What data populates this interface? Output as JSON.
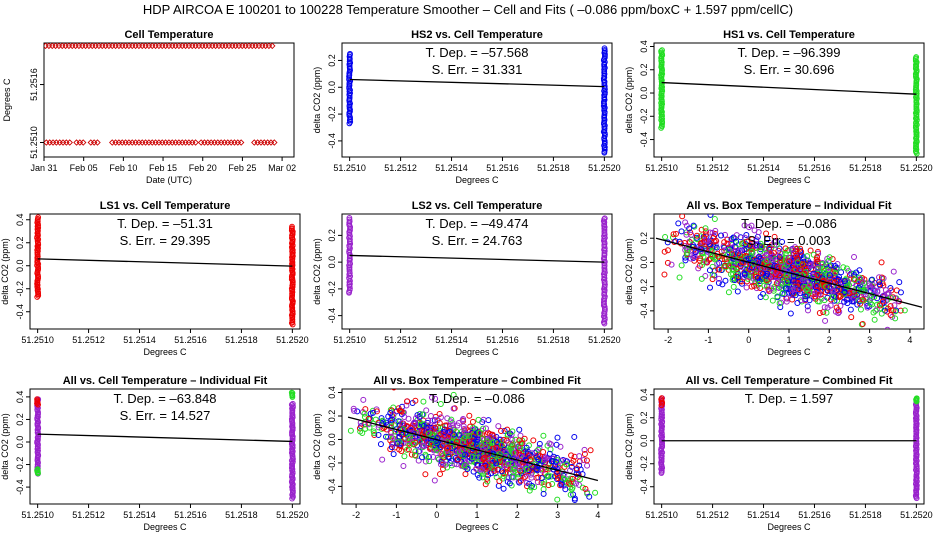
{
  "suptitle": "HDP   AIRCOA E   100201 to 100228   Temperature Smoother – Cell and Fits ( –0.086  ppm/boxC +  1.597  ppm/cellC)",
  "chart_data": [
    {
      "type": "scatter",
      "title": "Cell Temperature",
      "xlabel": "Date (UTC)",
      "ylabel": "Degrees C",
      "x_is_date": true,
      "xlim": [
        31,
        62.5
      ],
      "ylim": [
        51.25085,
        51.25203
      ],
      "xticks": [
        31,
        36,
        41,
        46,
        51,
        56,
        61
      ],
      "xticklabels": [
        "Jan 31",
        "Feb 05",
        "Feb 10",
        "Feb 15",
        "Feb 20",
        "Feb 25",
        "Mar 02"
      ],
      "yticks": [
        51.251,
        51.2516
      ],
      "yticklabels": [
        "51.2510",
        "51.2516"
      ],
      "series": [
        {
          "color": "#cc0000",
          "marker": "diamond",
          "high_level": 51.252,
          "high_range": [
            31.2,
            60.0
          ],
          "low_level": 51.251,
          "low_segments": [
            [
              31.3,
              34.4
            ],
            [
              35.1,
              36.3
            ],
            [
              36.9,
              37.8
            ],
            [
              39.6,
              50.2
            ],
            [
              50.8,
              56.0
            ],
            [
              57.5,
              60.2
            ]
          ]
        }
      ]
    },
    {
      "type": "scatter",
      "title": "HS2 vs. Cell Temperature",
      "annotations": [
        "T. Dep. =  –57.568",
        "S. Err. =  31.331"
      ],
      "xlabel": "Degrees C",
      "ylabel": "delta CO2 (ppm)",
      "xlim": [
        51.25097,
        51.25203
      ],
      "ylim": [
        -0.52,
        0.33
      ],
      "xticks": [
        51.251,
        51.2512,
        51.2514,
        51.2516,
        51.2518,
        51.252
      ],
      "xticklabels": [
        "51.2510",
        "51.2512",
        "51.2514",
        "51.2516",
        "51.2518",
        "51.2520"
      ],
      "yticks": [
        -0.4,
        -0.2,
        0.0,
        0.2
      ],
      "yticklabels": [
        "-0.4",
        "-0.2",
        "0.0",
        "0.2"
      ],
      "series": [
        {
          "color": "#0000ee",
          "x_levels": [
            51.251,
            51.252
          ],
          "y_ranges": [
            [
              -0.27,
              0.25
            ],
            [
              -0.49,
              0.29
            ]
          ]
        }
      ],
      "fit": {
        "x": [
          51.251,
          51.252
        ],
        "y": [
          0.058,
          0.005
        ]
      }
    },
    {
      "type": "scatter",
      "title": "HS1 vs. Cell Temperature",
      "annotations": [
        "T. Dep. =  –96.399",
        "S. Err. =  30.696"
      ],
      "xlabel": "Degrees C",
      "ylabel": "delta CO2 (ppm)",
      "xlim": [
        51.25097,
        51.25203
      ],
      "ylim": [
        -0.55,
        0.43
      ],
      "xticks": [
        51.251,
        51.2512,
        51.2514,
        51.2516,
        51.2518,
        51.252
      ],
      "xticklabels": [
        "51.2510",
        "51.2512",
        "51.2514",
        "51.2516",
        "51.2518",
        "51.2520"
      ],
      "yticks": [
        -0.4,
        -0.2,
        0.0,
        0.2,
        0.4
      ],
      "yticklabels": [
        "-0.4",
        "-0.2",
        "0.0",
        "0.2",
        "0.4"
      ],
      "series": [
        {
          "color": "#22dd22",
          "x_levels": [
            51.251,
            51.252
          ],
          "y_ranges": [
            [
              -0.3,
              0.37
            ],
            [
              -0.52,
              0.31
            ]
          ]
        }
      ],
      "fit": {
        "x": [
          51.251,
          51.252
        ],
        "y": [
          0.09,
          -0.01
        ]
      }
    },
    {
      "type": "scatter",
      "title": "LS1 vs. Cell Temperature",
      "annotations": [
        "T. Dep. =  –51.31",
        "S. Err. =  29.395"
      ],
      "xlabel": "Degrees C",
      "ylabel": "delta CO2 (ppm)",
      "xlim": [
        51.25097,
        51.25203
      ],
      "ylim": [
        -0.55,
        0.45
      ],
      "xticks": [
        51.251,
        51.2512,
        51.2514,
        51.2516,
        51.2518,
        51.252
      ],
      "xticklabels": [
        "51.2510",
        "51.2512",
        "51.2514",
        "51.2516",
        "51.2518",
        "51.2520"
      ],
      "yticks": [
        -0.4,
        -0.2,
        0.0,
        0.2,
        0.4
      ],
      "yticklabels": [
        "-0.4",
        "-0.2",
        "0.0",
        "0.2",
        "0.4"
      ],
      "series": [
        {
          "color": "#ee0000",
          "x_levels": [
            51.251,
            51.252
          ],
          "y_ranges": [
            [
              -0.27,
              0.42
            ],
            [
              -0.51,
              0.34
            ]
          ]
        }
      ],
      "fit": {
        "x": [
          51.251,
          51.252
        ],
        "y": [
          0.06,
          -0.003
        ]
      }
    },
    {
      "type": "scatter",
      "title": "LS2 vs. Cell Temperature",
      "annotations": [
        "T. Dep. =  –49.474",
        "S. Err. =  24.763"
      ],
      "xlabel": "Degrees C",
      "ylabel": "delta CO2 (ppm)",
      "xlim": [
        51.25097,
        51.25203
      ],
      "ylim": [
        -0.5,
        0.36
      ],
      "xticks": [
        51.251,
        51.2512,
        51.2514,
        51.2516,
        51.2518,
        51.252
      ],
      "xticklabels": [
        "51.2510",
        "51.2512",
        "51.2514",
        "51.2516",
        "51.2518",
        "51.2520"
      ],
      "yticks": [
        -0.4,
        -0.2,
        0.0,
        0.2
      ],
      "yticklabels": [
        "-0.4",
        "-0.2",
        "0.0",
        "0.2"
      ],
      "series": [
        {
          "color": "#9922cc",
          "x_levels": [
            51.251,
            51.252
          ],
          "y_ranges": [
            [
              -0.23,
              0.33
            ],
            [
              -0.46,
              0.33
            ]
          ]
        }
      ],
      "fit": {
        "x": [
          51.251,
          51.252
        ],
        "y": [
          0.05,
          0.0
        ]
      }
    },
    {
      "type": "scatter",
      "title": "All vs. Box Temperature – Individual Fit",
      "annotations": [
        "T. Dep. =  –0.086",
        "S. Err. =  0.003"
      ],
      "xlabel": "Degrees C",
      "ylabel": "delta CO2 (ppm)",
      "xlim": [
        -2.35,
        4.35
      ],
      "ylim": [
        -0.55,
        0.4
      ],
      "xticks": [
        -2,
        -1,
        0,
        1,
        2,
        3,
        4
      ],
      "xticklabels": [
        "-2",
        "-1",
        "0",
        "1",
        "2",
        "3",
        "4"
      ],
      "yticks": [
        -0.4,
        -0.2,
        0.0,
        0.2
      ],
      "yticklabels": [
        "-0.4",
        "-0.2",
        "0.0",
        "0.2"
      ],
      "cloud": {
        "x_range": [
          -2.2,
          4.1
        ],
        "slope": -0.086,
        "intercept": 0.0,
        "spread": 0.13,
        "colors": [
          "#ee0000",
          "#0000ee",
          "#22dd22",
          "#9922cc"
        ]
      },
      "fit": {
        "x": [
          -2.3,
          4.3
        ],
        "y": [
          0.2,
          -0.37
        ]
      }
    },
    {
      "type": "scatter",
      "title": "All vs. Cell Temperature – Individual Fit",
      "annotations": [
        "T. Dep. =  –63.848",
        "S. Err. =  14.527"
      ],
      "xlabel": "Degrees C",
      "ylabel": "delta CO2 (ppm)",
      "xlim": [
        51.25097,
        51.25203
      ],
      "ylim": [
        -0.55,
        0.47
      ],
      "xticks": [
        51.251,
        51.2512,
        51.2514,
        51.2516,
        51.2518,
        51.252
      ],
      "xticklabels": [
        "51.2510",
        "51.2512",
        "51.2514",
        "51.2516",
        "51.2518",
        "51.2520"
      ],
      "yticks": [
        -0.4,
        -0.2,
        0.0,
        0.2,
        0.4
      ],
      "yticklabels": [
        "-0.4",
        "-0.2",
        "0.0",
        "0.2",
        "0.4"
      ],
      "series": [
        {
          "color": "#9922cc",
          "x_levels": [
            51.251,
            51.252
          ],
          "y_ranges": [
            [
              -0.28,
              0.38
            ],
            [
              -0.5,
              0.34
            ]
          ]
        },
        {
          "color": "#ee0000",
          "x_levels": [
            51.251
          ],
          "y_ranges": [
            [
              0.33,
              0.38
            ]
          ]
        },
        {
          "color": "#22dd22",
          "x_levels": [
            51.251,
            51.252
          ],
          "y_ranges": [
            [
              -0.28,
              -0.24
            ],
            [
              0.4,
              0.44
            ]
          ]
        }
      ],
      "fit": {
        "x": [
          51.251,
          51.252
        ],
        "y": [
          0.07,
          0.005
        ]
      }
    },
    {
      "type": "scatter",
      "title": "All vs. Box Temperature – Combined Fit",
      "annotations": [
        "T. Dep. =  –0.086"
      ],
      "xlabel": "Degrees C",
      "ylabel": "delta CO2 (ppm)",
      "xlim": [
        -2.35,
        4.35
      ],
      "ylim": [
        -0.55,
        0.43
      ],
      "xticks": [
        -2,
        -1,
        0,
        1,
        2,
        3,
        4
      ],
      "xticklabels": [
        "-2",
        "-1",
        "0",
        "1",
        "2",
        "3",
        "4"
      ],
      "yticks": [
        -0.4,
        -0.2,
        0.0,
        0.2,
        0.4
      ],
      "yticklabels": [
        "-0.4",
        "-0.2",
        "0.0",
        "0.2",
        "0.4"
      ],
      "cloud": {
        "x_range": [
          -2.2,
          4.0
        ],
        "slope": -0.086,
        "intercept": 0.0,
        "spread": 0.13,
        "colors": [
          "#ee0000",
          "#0000ee",
          "#22dd22",
          "#9922cc"
        ]
      },
      "fit": {
        "x": [
          -2.2,
          4.0
        ],
        "y": [
          0.19,
          -0.35
        ]
      }
    },
    {
      "type": "scatter",
      "title": "All vs. Cell Temperature – Combined Fit",
      "annotations": [
        "T. Dep. =  1.597"
      ],
      "xlabel": "Degrees C",
      "ylabel": "delta CO2 (ppm)",
      "xlim": [
        51.25097,
        51.25203
      ],
      "ylim": [
        -0.55,
        0.45
      ],
      "xticks": [
        51.251,
        51.2512,
        51.2514,
        51.2516,
        51.2518,
        51.252
      ],
      "xticklabels": [
        "51.2510",
        "51.2512",
        "51.2514",
        "51.2516",
        "51.2518",
        "51.2520"
      ],
      "yticks": [
        -0.4,
        -0.2,
        0.0,
        0.2,
        0.4
      ],
      "yticklabels": [
        "-0.4",
        "-0.2",
        "0.0",
        "0.2",
        "0.4"
      ],
      "series": [
        {
          "color": "#9922cc",
          "x_levels": [
            51.251,
            51.252
          ],
          "y_ranges": [
            [
              -0.28,
              0.37
            ],
            [
              -0.5,
              0.34
            ]
          ]
        },
        {
          "color": "#ee0000",
          "x_levels": [
            51.251
          ],
          "y_ranges": [
            [
              0.31,
              0.37
            ]
          ]
        },
        {
          "color": "#22dd22",
          "x_levels": [
            51.252
          ],
          "y_ranges": [
            [
              0.34,
              0.37
            ]
          ]
        }
      ],
      "fit": {
        "x": [
          51.251,
          51.252
        ],
        "y": [
          0.0,
          0.0
        ]
      }
    }
  ]
}
